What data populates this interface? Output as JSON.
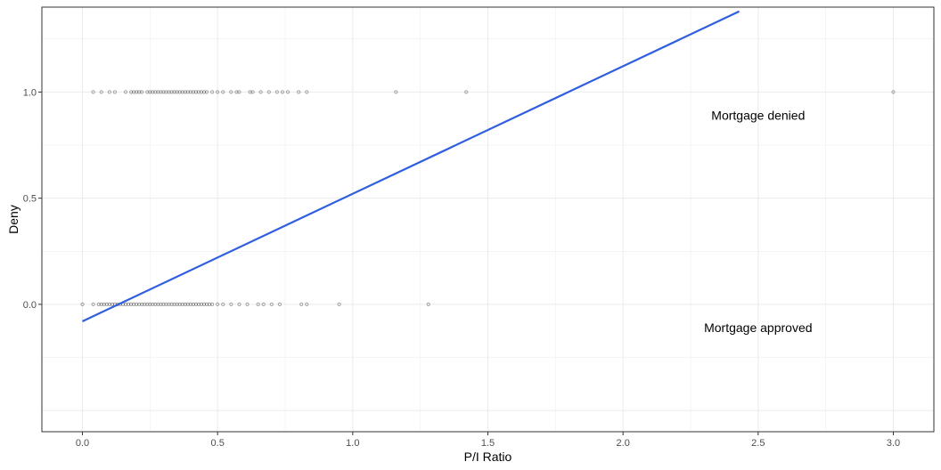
{
  "chart_data": {
    "type": "scatter",
    "xlabel": "P/I Ratio",
    "ylabel": "Deny",
    "xlim": [
      -0.15,
      3.15
    ],
    "ylim": [
      -0.6,
      1.4
    ],
    "x_ticks": [
      0.0,
      0.5,
      1.0,
      1.5,
      2.0,
      2.5,
      3.0
    ],
    "x_tick_labels": [
      "0.0",
      "0.5",
      "1.0",
      "1.5",
      "2.0",
      "2.5",
      "3.0"
    ],
    "y_ticks": [
      0.0,
      0.5,
      1.0
    ],
    "y_tick_labels": [
      "0.0",
      "0.5",
      "1.0"
    ],
    "grid": true,
    "points": [
      {
        "x": 0.04,
        "y": 1
      },
      {
        "x": 0.07,
        "y": 1
      },
      {
        "x": 0.1,
        "y": 1
      },
      {
        "x": 0.12,
        "y": 1
      },
      {
        "x": 0.16,
        "y": 1
      },
      {
        "x": 0.18,
        "y": 1
      },
      {
        "x": 0.19,
        "y": 1
      },
      {
        "x": 0.2,
        "y": 1
      },
      {
        "x": 0.21,
        "y": 1
      },
      {
        "x": 0.22,
        "y": 1
      },
      {
        "x": 0.24,
        "y": 1
      },
      {
        "x": 0.25,
        "y": 1
      },
      {
        "x": 0.26,
        "y": 1
      },
      {
        "x": 0.27,
        "y": 1
      },
      {
        "x": 0.28,
        "y": 1
      },
      {
        "x": 0.29,
        "y": 1
      },
      {
        "x": 0.3,
        "y": 1
      },
      {
        "x": 0.31,
        "y": 1
      },
      {
        "x": 0.32,
        "y": 1
      },
      {
        "x": 0.33,
        "y": 1
      },
      {
        "x": 0.34,
        "y": 1
      },
      {
        "x": 0.35,
        "y": 1
      },
      {
        "x": 0.36,
        "y": 1
      },
      {
        "x": 0.37,
        "y": 1
      },
      {
        "x": 0.38,
        "y": 1
      },
      {
        "x": 0.39,
        "y": 1
      },
      {
        "x": 0.4,
        "y": 1
      },
      {
        "x": 0.41,
        "y": 1
      },
      {
        "x": 0.42,
        "y": 1
      },
      {
        "x": 0.43,
        "y": 1
      },
      {
        "x": 0.44,
        "y": 1
      },
      {
        "x": 0.45,
        "y": 1
      },
      {
        "x": 0.46,
        "y": 1
      },
      {
        "x": 0.48,
        "y": 1
      },
      {
        "x": 0.5,
        "y": 1
      },
      {
        "x": 0.52,
        "y": 1
      },
      {
        "x": 0.55,
        "y": 1
      },
      {
        "x": 0.57,
        "y": 1
      },
      {
        "x": 0.58,
        "y": 1
      },
      {
        "x": 0.62,
        "y": 1
      },
      {
        "x": 0.63,
        "y": 1
      },
      {
        "x": 0.66,
        "y": 1
      },
      {
        "x": 0.69,
        "y": 1
      },
      {
        "x": 0.72,
        "y": 1
      },
      {
        "x": 0.74,
        "y": 1
      },
      {
        "x": 0.76,
        "y": 1
      },
      {
        "x": 0.8,
        "y": 1
      },
      {
        "x": 0.83,
        "y": 1
      },
      {
        "x": 1.16,
        "y": 1
      },
      {
        "x": 1.42,
        "y": 1
      },
      {
        "x": 3.0,
        "y": 1
      },
      {
        "x": 0.0,
        "y": 0
      },
      {
        "x": 0.04,
        "y": 0
      },
      {
        "x": 0.06,
        "y": 0
      },
      {
        "x": 0.07,
        "y": 0
      },
      {
        "x": 0.08,
        "y": 0
      },
      {
        "x": 0.09,
        "y": 0
      },
      {
        "x": 0.1,
        "y": 0
      },
      {
        "x": 0.11,
        "y": 0
      },
      {
        "x": 0.12,
        "y": 0
      },
      {
        "x": 0.13,
        "y": 0
      },
      {
        "x": 0.14,
        "y": 0
      },
      {
        "x": 0.15,
        "y": 0
      },
      {
        "x": 0.16,
        "y": 0
      },
      {
        "x": 0.17,
        "y": 0
      },
      {
        "x": 0.18,
        "y": 0
      },
      {
        "x": 0.19,
        "y": 0
      },
      {
        "x": 0.2,
        "y": 0
      },
      {
        "x": 0.21,
        "y": 0
      },
      {
        "x": 0.22,
        "y": 0
      },
      {
        "x": 0.23,
        "y": 0
      },
      {
        "x": 0.24,
        "y": 0
      },
      {
        "x": 0.25,
        "y": 0
      },
      {
        "x": 0.26,
        "y": 0
      },
      {
        "x": 0.27,
        "y": 0
      },
      {
        "x": 0.28,
        "y": 0
      },
      {
        "x": 0.29,
        "y": 0
      },
      {
        "x": 0.3,
        "y": 0
      },
      {
        "x": 0.31,
        "y": 0
      },
      {
        "x": 0.32,
        "y": 0
      },
      {
        "x": 0.33,
        "y": 0
      },
      {
        "x": 0.34,
        "y": 0
      },
      {
        "x": 0.35,
        "y": 0
      },
      {
        "x": 0.36,
        "y": 0
      },
      {
        "x": 0.37,
        "y": 0
      },
      {
        "x": 0.38,
        "y": 0
      },
      {
        "x": 0.39,
        "y": 0
      },
      {
        "x": 0.4,
        "y": 0
      },
      {
        "x": 0.41,
        "y": 0
      },
      {
        "x": 0.42,
        "y": 0
      },
      {
        "x": 0.43,
        "y": 0
      },
      {
        "x": 0.44,
        "y": 0
      },
      {
        "x": 0.45,
        "y": 0
      },
      {
        "x": 0.46,
        "y": 0
      },
      {
        "x": 0.47,
        "y": 0
      },
      {
        "x": 0.48,
        "y": 0
      },
      {
        "x": 0.5,
        "y": 0
      },
      {
        "x": 0.52,
        "y": 0
      },
      {
        "x": 0.55,
        "y": 0
      },
      {
        "x": 0.58,
        "y": 0
      },
      {
        "x": 0.61,
        "y": 0
      },
      {
        "x": 0.65,
        "y": 0
      },
      {
        "x": 0.67,
        "y": 0
      },
      {
        "x": 0.7,
        "y": 0
      },
      {
        "x": 0.73,
        "y": 0
      },
      {
        "x": 0.81,
        "y": 0
      },
      {
        "x": 0.83,
        "y": 0
      },
      {
        "x": 0.95,
        "y": 0
      },
      {
        "x": 1.28,
        "y": 0
      }
    ],
    "fit_line": {
      "x": [
        0.0,
        2.43
      ],
      "y": [
        -0.08,
        1.38
      ],
      "color": "#2f5fe0"
    },
    "annotations": [
      {
        "text": "Mortgage denied",
        "x": 2.5,
        "y": 0.89
      },
      {
        "text": "Mortgage approved",
        "x": 2.5,
        "y": -0.11
      }
    ],
    "colors": {
      "point": "#000000",
      "grid": "#ebebeb",
      "panel_border": "#333333"
    }
  }
}
